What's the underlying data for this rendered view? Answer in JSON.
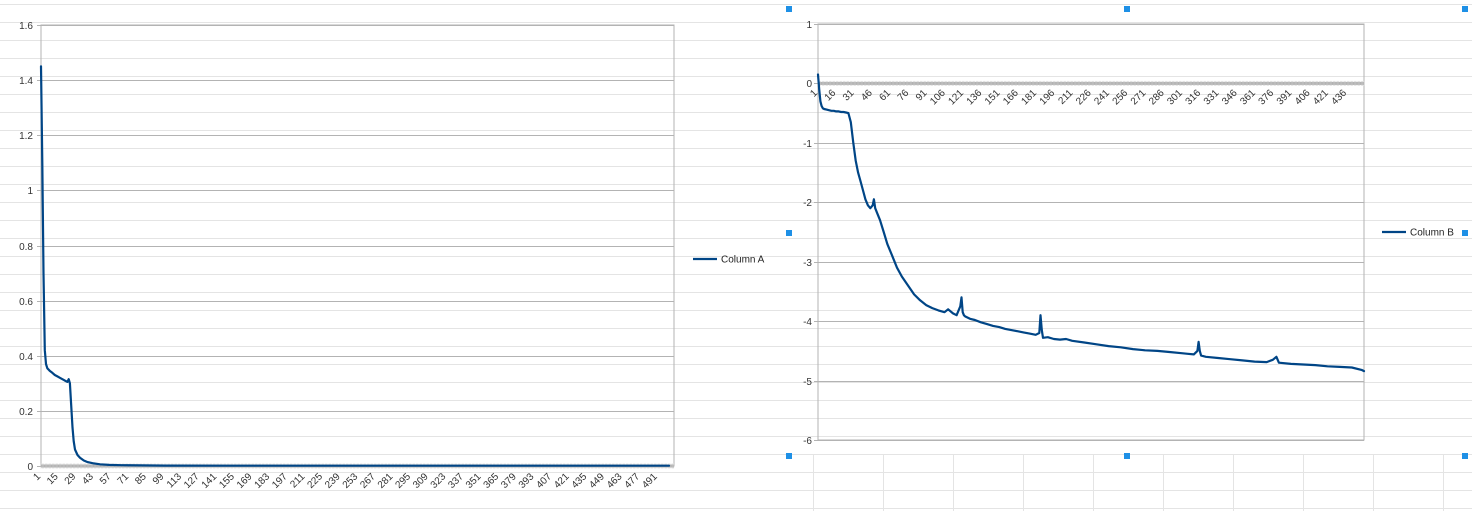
{
  "chart_data": [
    {
      "type": "line",
      "series": [
        {
          "name": "Column A",
          "x": [
            1,
            2,
            3,
            4,
            5,
            6,
            8,
            10,
            12,
            14,
            16,
            18,
            20,
            22,
            23,
            24,
            25,
            26,
            27,
            28,
            30,
            32,
            35,
            38,
            42,
            48,
            55,
            65,
            80,
            100,
            150,
            200,
            300,
            400,
            500
          ],
          "values": [
            1.45,
            1.1,
            0.7,
            0.42,
            0.37,
            0.355,
            0.345,
            0.338,
            0.33,
            0.325,
            0.32,
            0.315,
            0.31,
            0.305,
            0.315,
            0.3,
            0.22,
            0.14,
            0.09,
            0.06,
            0.04,
            0.03,
            0.02,
            0.014,
            0.01,
            0.006,
            0.004,
            0.003,
            0.002,
            0.0015,
            0.001,
            0.001,
            0.001,
            0.001,
            0.001
          ],
          "color": "#004586"
        }
      ],
      "xlabel": "",
      "ylabel": "",
      "ylim": [
        0,
        1.6
      ],
      "yticks": [
        "0",
        "0.2",
        "0.4",
        "0.6",
        "0.8",
        "1",
        "1.2",
        "1.4",
        "1.6"
      ],
      "xticks": [
        "1",
        "15",
        "29",
        "43",
        "57",
        "71",
        "85",
        "99",
        "113",
        "127",
        "141",
        "155",
        "169",
        "183",
        "197",
        "211",
        "225",
        "239",
        "253",
        "267",
        "281",
        "295",
        "309",
        "323",
        "337",
        "351",
        "365",
        "379",
        "393",
        "407",
        "421",
        "435",
        "449",
        "463",
        "477",
        "491"
      ],
      "xlim": [
        1,
        504
      ],
      "grid": true,
      "legend": "right"
    },
    {
      "type": "line",
      "series": [
        {
          "name": "Column B",
          "x": [
            1,
            2,
            3,
            4,
            5,
            6,
            8,
            10,
            12,
            14,
            16,
            18,
            20,
            22,
            24,
            26,
            28,
            30,
            32,
            34,
            36,
            38,
            40,
            42,
            44,
            46,
            47,
            48,
            50,
            52,
            55,
            58,
            62,
            66,
            70,
            75,
            80,
            85,
            90,
            95,
            100,
            105,
            108,
            112,
            115,
            118,
            119,
            120,
            121,
            122,
            126,
            130,
            135,
            140,
            145,
            150,
            155,
            160,
            165,
            170,
            175,
            180,
            183,
            184,
            185,
            186,
            190,
            195,
            200,
            205,
            210,
            220,
            230,
            240,
            250,
            260,
            270,
            280,
            290,
            300,
            305,
            310,
            313,
            314,
            315,
            316,
            320,
            330,
            340,
            350,
            360,
            370,
            375,
            378,
            380,
            390,
            400,
            410,
            420,
            430,
            440,
            448,
            450
          ],
          "values": [
            0.15,
            -0.1,
            -0.3,
            -0.38,
            -0.42,
            -0.43,
            -0.44,
            -0.45,
            -0.46,
            -0.46,
            -0.47,
            -0.47,
            -0.48,
            -0.48,
            -0.49,
            -0.5,
            -0.65,
            -1.0,
            -1.3,
            -1.5,
            -1.65,
            -1.8,
            -1.95,
            -2.05,
            -2.1,
            -2.05,
            -1.95,
            -2.1,
            -2.2,
            -2.3,
            -2.5,
            -2.7,
            -2.9,
            -3.1,
            -3.25,
            -3.4,
            -3.55,
            -3.65,
            -3.73,
            -3.78,
            -3.82,
            -3.85,
            -3.8,
            -3.87,
            -3.9,
            -3.75,
            -3.6,
            -3.85,
            -3.9,
            -3.92,
            -3.96,
            -3.98,
            -4.02,
            -4.05,
            -4.08,
            -4.1,
            -4.13,
            -4.15,
            -4.17,
            -4.19,
            -4.21,
            -4.23,
            -4.2,
            -3.9,
            -4.15,
            -4.28,
            -4.27,
            -4.3,
            -4.31,
            -4.3,
            -4.33,
            -4.36,
            -4.39,
            -4.42,
            -4.44,
            -4.47,
            -4.49,
            -4.5,
            -4.52,
            -4.54,
            -4.55,
            -4.56,
            -4.5,
            -4.35,
            -4.5,
            -4.58,
            -4.6,
            -4.62,
            -4.64,
            -4.66,
            -4.68,
            -4.69,
            -4.65,
            -4.6,
            -4.7,
            -4.72,
            -4.73,
            -4.74,
            -4.76,
            -4.77,
            -4.78,
            -4.82,
            -4.84
          ],
          "color": "#004586"
        }
      ],
      "xlabel": "",
      "ylabel": "",
      "ylim": [
        -6,
        1
      ],
      "yticks": [
        "-6",
        "-5",
        "-4",
        "-3",
        "-2",
        "-1",
        "0",
        "1"
      ],
      "xticks": [
        "1",
        "16",
        "31",
        "46",
        "61",
        "76",
        "91",
        "106",
        "121",
        "136",
        "151",
        "166",
        "181",
        "196",
        "211",
        "226",
        "241",
        "256",
        "271",
        "286",
        "301",
        "316",
        "331",
        "346",
        "361",
        "376",
        "391",
        "406",
        "421",
        "436"
      ],
      "xlim": [
        1,
        450
      ],
      "grid": true,
      "legend": "right"
    }
  ]
}
